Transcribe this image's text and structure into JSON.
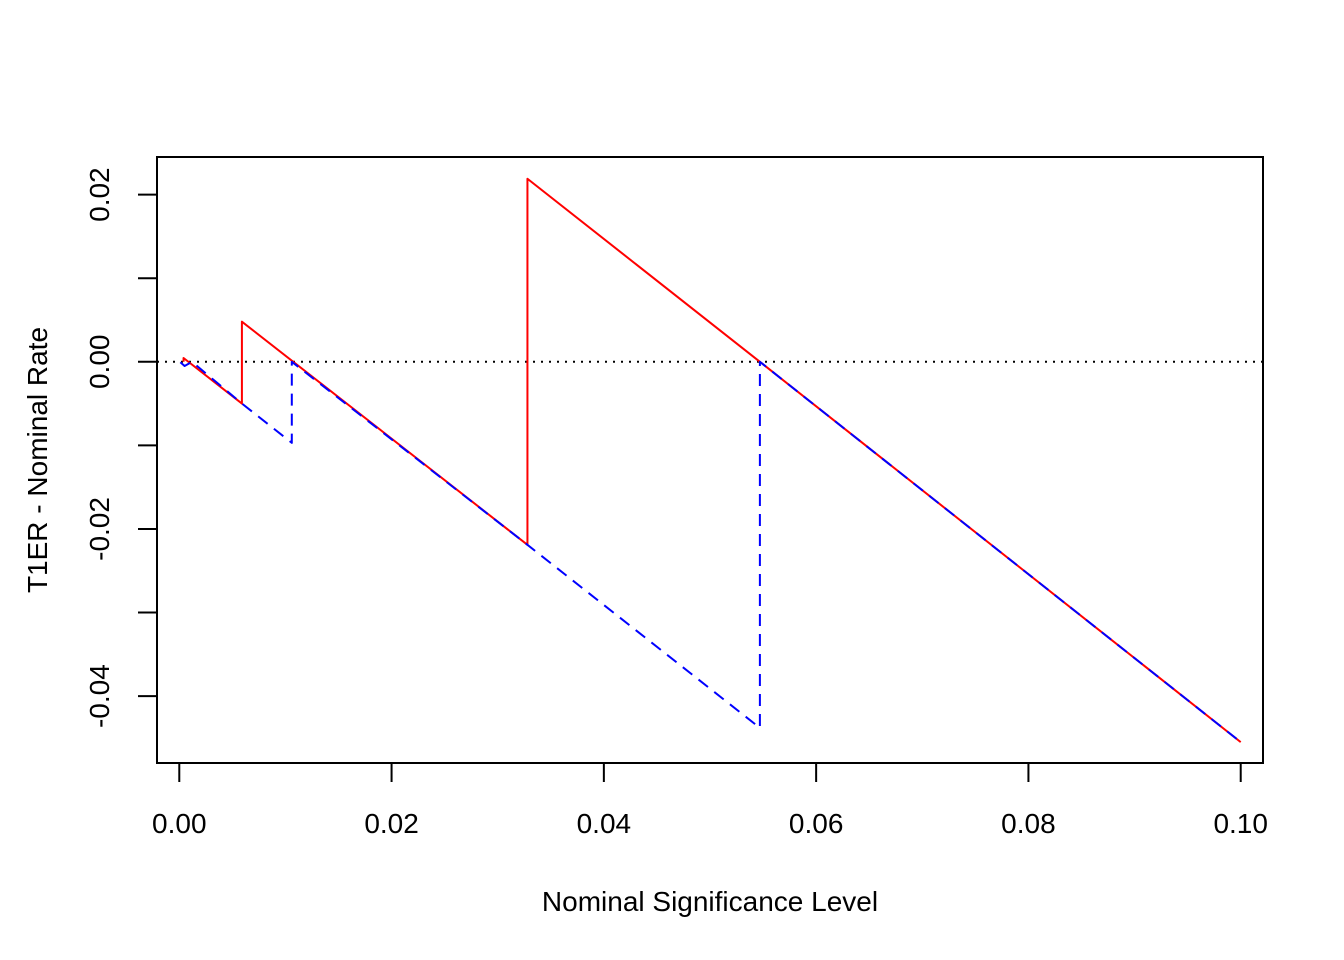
{
  "chart_data": {
    "type": "line",
    "title": "",
    "xlabel": "Nominal Significance Level",
    "ylabel": "T1ER - Nominal Rate",
    "xlim": [
      -0.0021,
      0.1021
    ],
    "ylim": [
      -0.048,
      0.0245
    ],
    "x_ticks": [
      0.0,
      0.02,
      0.04,
      0.06,
      0.08,
      0.1
    ],
    "x_tick_labels": [
      "0.00",
      "0.02",
      "0.04",
      "0.06",
      "0.08",
      "0.10"
    ],
    "y_ticks": [
      -0.04,
      -0.03,
      -0.02,
      -0.01,
      0.0,
      0.01,
      0.02
    ],
    "y_tick_labels": [
      "-0.04",
      "",
      "-0.02",
      "",
      "0.00",
      "",
      "0.02"
    ],
    "reference_line": {
      "y": 0.0,
      "style": "dotted",
      "color": "#000000"
    },
    "grid": false,
    "legend": "none",
    "series": [
      {
        "color": "#ff0000",
        "style": "solid",
        "points": [
          [
            0.0004,
            0.0
          ],
          [
            0.0004,
            0.00045
          ],
          [
            0.0059,
            -0.005
          ],
          [
            0.0059,
            0.0048
          ],
          [
            0.0328,
            -0.0219
          ],
          [
            0.0328,
            0.0219
          ],
          [
            0.0547,
            0.0
          ],
          [
            0.1,
            -0.0455
          ]
        ]
      },
      {
        "color": "#0000ff",
        "style": "dashed",
        "points": [
          [
            0.0001,
            -5e-05
          ],
          [
            0.0005,
            -0.0005
          ],
          [
            0.0012,
            0.0
          ],
          [
            0.0059,
            -0.005
          ],
          [
            0.0106,
            -0.0097
          ],
          [
            0.0106,
            0.0
          ],
          [
            0.0328,
            -0.0219
          ],
          [
            0.0547,
            -0.0438
          ],
          [
            0.0547,
            0.0
          ],
          [
            0.1,
            -0.0455
          ]
        ]
      }
    ]
  }
}
